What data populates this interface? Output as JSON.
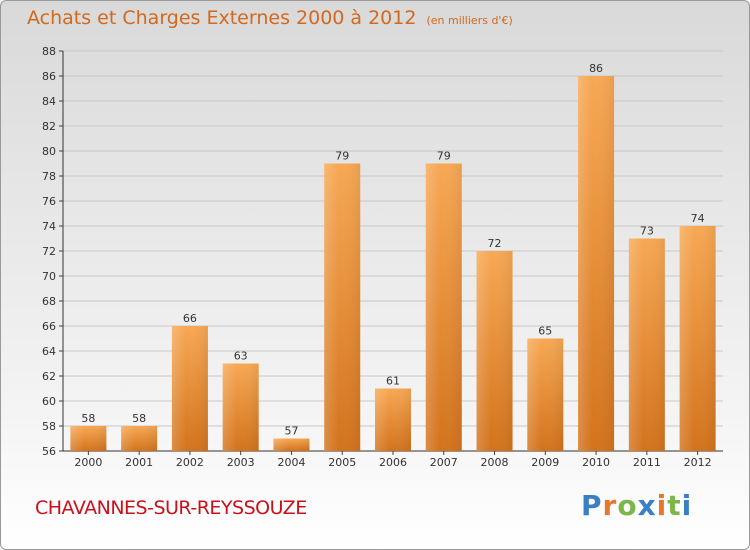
{
  "header": {
    "title": "Achats et Charges Externes 2000 à 2012",
    "subtitle": "(en milliers d'€)"
  },
  "footer": {
    "commune": "CHAVANNES-SUR-REYSSOUZE",
    "logo": "Proxiti",
    "logo_colors": [
      "#3a7fc4",
      "#e8772e",
      "#7ab648",
      "#3a7fc4",
      "#e8772e",
      "#7ab648",
      "#3a7fc4"
    ]
  },
  "colors": {
    "bar_light": "#f6a54f",
    "bar_dark": "#d4751e",
    "text": "#d2691e",
    "commune": "#c8111b"
  },
  "chart_data": {
    "type": "bar",
    "title": "Achats et Charges Externes 2000 à 2012",
    "subtitle": "(en milliers d'€)",
    "categories": [
      "2000",
      "2001",
      "2002",
      "2003",
      "2004",
      "2005",
      "2006",
      "2007",
      "2008",
      "2009",
      "2010",
      "2011",
      "2012"
    ],
    "values": [
      58,
      58,
      66,
      63,
      57,
      79,
      61,
      79,
      72,
      65,
      86,
      73,
      74
    ],
    "ylim": [
      56,
      88
    ],
    "yticks": [
      56,
      58,
      60,
      62,
      64,
      66,
      68,
      70,
      72,
      74,
      76,
      78,
      80,
      82,
      84,
      86,
      88
    ],
    "grid": true,
    "data_labels": true
  }
}
